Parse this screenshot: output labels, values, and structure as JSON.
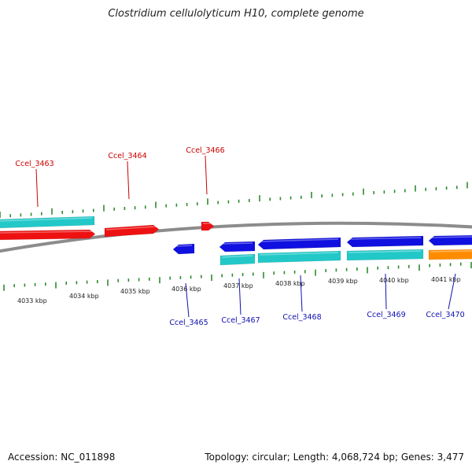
{
  "title": "Clostridium cellulolyticum H10, complete genome",
  "footer": {
    "accession": "Accession: NC_011898",
    "summary": "Topology: circular; Length: 4,068,724 bp; Genes: 3,477"
  },
  "colors": {
    "background": "#ffffff",
    "backbone": "#8c8c8c",
    "tick": "#2e8b2e",
    "forward_label": "#cc0000",
    "reverse_label": "#1010b0",
    "cds_forward": "#ee1111",
    "cds_reverse": "#1010e0",
    "feature_cyan": "#22c8c8",
    "feature_orange": "#ff8c00"
  },
  "scale_labels": [
    "4033 kbp",
    "4034 kbp",
    "4035 kbp",
    "4036 kbp",
    "4037 kbp",
    "4038 kbp",
    "4039 kbp",
    "4040 kbp",
    "4041 kbp"
  ],
  "forward_gene_labels": [
    "Ccel_3463",
    "Ccel_3464",
    "Ccel_3466"
  ],
  "reverse_gene_labels": [
    "Ccel_3465",
    "Ccel_3467",
    "Ccel_3468",
    "Ccel_3469",
    "Ccel_3470"
  ],
  "features": [
    {
      "name": "cds-forward",
      "strand": "forward"
    },
    {
      "name": "cds-forward",
      "strand": "forward"
    },
    {
      "name": "cds-forward",
      "strand": "forward"
    },
    {
      "name": "cds-reverse",
      "strand": "reverse"
    },
    {
      "name": "cds-reverse",
      "strand": "reverse"
    },
    {
      "name": "cds-reverse",
      "strand": "reverse"
    },
    {
      "name": "cds-reverse",
      "strand": "reverse"
    },
    {
      "name": "cds-reverse",
      "strand": "reverse"
    },
    {
      "name": "feature-cyan",
      "strand": "forward"
    },
    {
      "name": "feature-cyan",
      "strand": "reverse"
    },
    {
      "name": "feature-cyan",
      "strand": "reverse"
    },
    {
      "name": "feature-cyan",
      "strand": "reverse"
    },
    {
      "name": "feature-orange",
      "strand": "reverse"
    }
  ]
}
